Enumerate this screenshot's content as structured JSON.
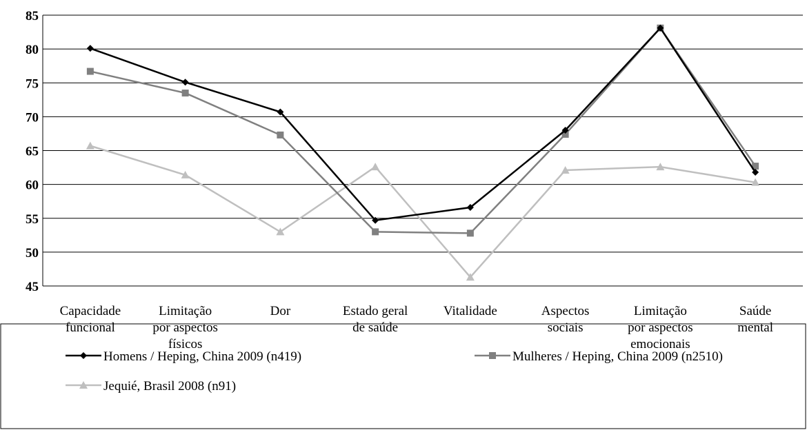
{
  "chart_data": {
    "type": "line",
    "categories": [
      "Capacidade\nfuncional",
      "Limitação\npor aspectos\nfísicos",
      "Dor",
      "Estado geral\nde saúde",
      "Vitalidade",
      "Aspectos\nsociais",
      "Limitação\npor aspectos\nemocionais",
      "Saúde\nmental"
    ],
    "series": [
      {
        "name": "Homens / Heping, China 2009 (n419)",
        "color": "#000000",
        "marker": "diamond",
        "values": [
          80.1,
          75.1,
          70.7,
          54.7,
          56.6,
          68,
          83.1,
          61.8
        ]
      },
      {
        "name": "Mulheres / Heping, China 2009 (n2510)",
        "color": "#808080",
        "marker": "square",
        "values": [
          76.7,
          73.5,
          67.3,
          53,
          52.8,
          67.4,
          83.1,
          62.7
        ]
      },
      {
        "name": "Jequié, Brasil 2008 (n91)",
        "color": "#bfbfbf",
        "marker": "triangle",
        "values": [
          65.7,
          61.4,
          53,
          62.6,
          46.3,
          62.1,
          62.6,
          60.3
        ]
      }
    ],
    "ylim": [
      45,
      85
    ],
    "yticks": [
      45,
      50,
      55,
      60,
      65,
      70,
      75,
      80,
      85
    ],
    "grid": true,
    "legend": "bottom"
  }
}
